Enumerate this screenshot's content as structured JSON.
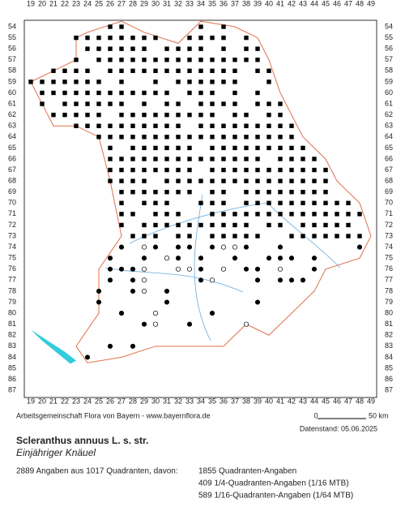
{
  "map": {
    "columns": [
      19,
      20,
      21,
      22,
      23,
      24,
      25,
      26,
      27,
      28,
      29,
      30,
      31,
      32,
      33,
      34,
      35,
      36,
      37,
      38,
      39,
      40,
      41,
      42,
      43,
      44,
      45,
      46,
      47,
      48,
      49
    ],
    "rows": [
      54,
      55,
      56,
      57,
      58,
      59,
      60,
      61,
      62,
      63,
      64,
      65,
      66,
      67,
      68,
      69,
      70,
      71,
      72,
      73,
      74,
      75,
      76,
      77,
      78,
      79,
      80,
      81,
      82,
      83,
      84,
      85,
      86,
      87
    ]
  },
  "credit": "Arbeitsgemeinschaft Flora von Bayern - www.bayernflora.de",
  "scale": {
    "start": 0,
    "end": "50 km"
  },
  "date": "Datenstand: 05.06.2025",
  "title": "Scleranthus annuus L. s. str.",
  "subtitle": "Einjähriger Knäuel",
  "summary": "2889 Angaben aus 1017 Quadranten, davon:",
  "breakdown": [
    "1855 Quadranten-Angaben",
    "409 1/4-Quadranten-Angaben (1/16 MTB)",
    "589 1/16-Quadranten-Angaben (1/64 MTB)"
  ]
}
